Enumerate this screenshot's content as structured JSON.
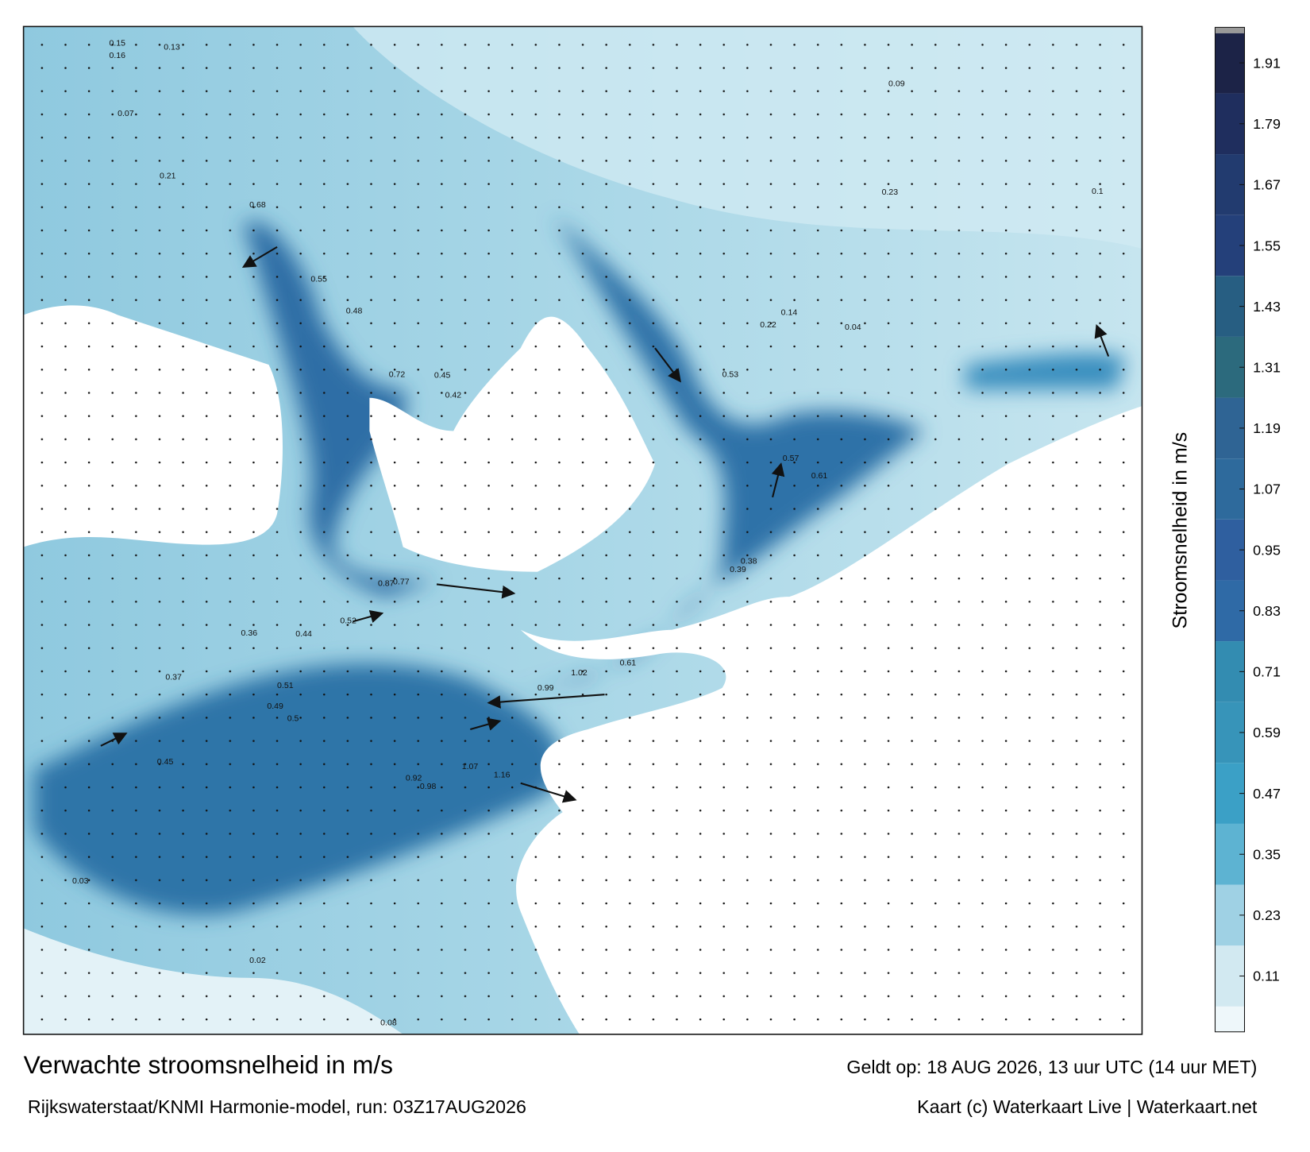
{
  "map": {
    "title": "Verwachte stroomsnelheid in m/s",
    "subtitle": "Rijkswaterstaat/KNMI Harmonie-model, run: 03Z17AUG2026",
    "valid_time": "Geldt op: 18 AUG 2026, 13 uur UTC (14 uur MET)",
    "credit": "Kaart (c) Waterkaart Live | Waterkaart.net",
    "colorbar": {
      "label": "Stroomsnelheid in m/s",
      "lim": [
        0,
        1.98
      ],
      "ticks": [
        0.11,
        0.23,
        0.35,
        0.47,
        0.59,
        0.71,
        0.83,
        0.95,
        1.07,
        1.19,
        1.31,
        1.43,
        1.55,
        1.67,
        1.79,
        1.91
      ],
      "colors": [
        "#d2e9f1",
        "#9fd1e4",
        "#5db3d2",
        "#3ba0c6",
        "#3794b9",
        "#338cb1",
        "#2f6aa6",
        "#2f5f9f",
        "#2e6a9c",
        "#2f6494",
        "#2c6a7d",
        "#275e82",
        "#24407a",
        "#223b6f",
        "#1f2e5e",
        "#1c2347"
      ]
    },
    "labels": [
      0.15,
      0.16,
      0.13,
      0.07,
      0.21,
      0.68,
      0.55,
      0.48,
      0.72,
      0.45,
      0.42,
      0.77,
      0.87,
      0.52,
      0.44,
      0.36,
      0.37,
      0.45,
      0.51,
      0.5,
      0.49,
      0.99,
      1.02,
      0.61,
      0.92,
      1.07,
      1.16,
      0.98,
      0.53,
      0.57,
      0.61,
      0.38,
      0.39,
      0.22,
      0.14,
      0.09,
      0.23,
      0.03,
      0.02,
      0.08,
      0.1,
      0.04
    ]
  }
}
